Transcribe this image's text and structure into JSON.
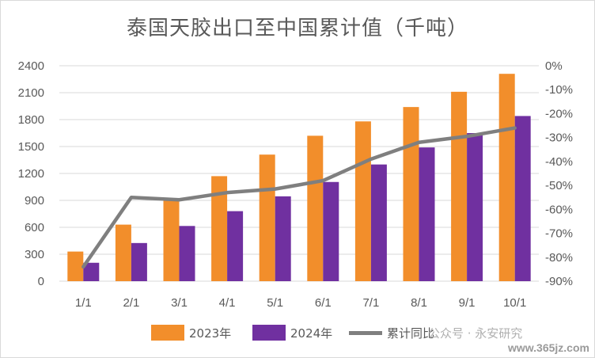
{
  "chart_data": {
    "type": "bar",
    "title": "泰国天胶出口至中国累计值（千吨）",
    "categories": [
      "1/1",
      "2/1",
      "3/1",
      "4/1",
      "5/1",
      "6/1",
      "7/1",
      "8/1",
      "9/1",
      "10/1"
    ],
    "series": [
      {
        "name": "2023年",
        "type": "bar",
        "axis": "left",
        "color": "#F28E2B",
        "values": [
          330,
          630,
          910,
          1170,
          1410,
          1620,
          1780,
          1940,
          2110,
          2310
        ]
      },
      {
        "name": "2024年",
        "type": "bar",
        "axis": "left",
        "color": "#7030A0",
        "values": [
          205,
          425,
          615,
          780,
          945,
          1105,
          1300,
          1490,
          1650,
          1840
        ]
      },
      {
        "name": "累计同比",
        "type": "line",
        "axis": "right",
        "color": "#7F7F7F",
        "values": [
          -84,
          -55,
          -56,
          -53,
          -51.5,
          -48,
          -39,
          -32,
          -29.5,
          -26
        ]
      }
    ],
    "y_left": {
      "min": 0,
      "max": 2400,
      "ticks": [
        "0",
        "300",
        "600",
        "900",
        "1200",
        "1500",
        "1800",
        "2100",
        "2400"
      ]
    },
    "y_right": {
      "min": -90,
      "max": 0,
      "ticks": [
        "-90%",
        "-80%",
        "-70%",
        "-60%",
        "-50%",
        "-40%",
        "-30%",
        "-20%",
        "-10%",
        "0%"
      ]
    },
    "grid": true,
    "legend_position": "bottom"
  },
  "legend": {
    "item_2023": "2023年",
    "item_2024": "2024年",
    "item_yoy": "累计同比"
  },
  "watermark": {
    "wechat": "公众号 · 永安研究",
    "site": "www.365jz.com"
  }
}
